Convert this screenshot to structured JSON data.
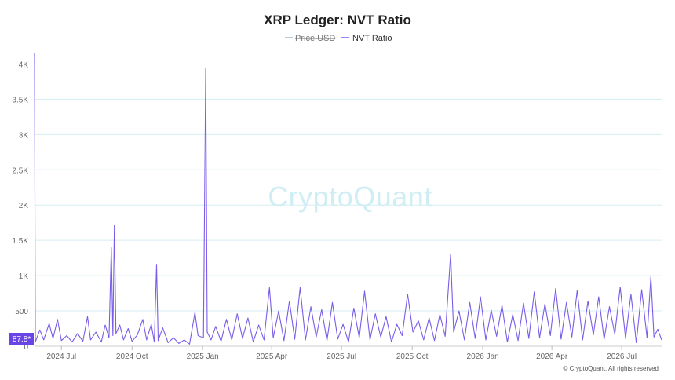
{
  "chart_data": {
    "type": "line",
    "title": "XRP Ledger: NVT Ratio",
    "legend": [
      {
        "name": "Price USD",
        "color": "#9ab6c9",
        "hidden": true
      },
      {
        "name": "NVT Ratio",
        "color": "#7a5ce8",
        "hidden": false
      }
    ],
    "y_ticks": [
      {
        "value": 0,
        "label": "0"
      },
      {
        "value": 500,
        "label": "500"
      },
      {
        "value": 1000,
        "label": "1K"
      },
      {
        "value": 1500,
        "label": "1.5K"
      },
      {
        "value": 2000,
        "label": "2K"
      },
      {
        "value": 2500,
        "label": "2.5K"
      },
      {
        "value": 3000,
        "label": "3K"
      },
      {
        "value": 3500,
        "label": "3.5K"
      },
      {
        "value": 4000,
        "label": "4K"
      }
    ],
    "ylim": [
      0,
      4150
    ],
    "x_ticks": [
      {
        "date": "2024-07-01",
        "label": "2024 Jul"
      },
      {
        "date": "2024-10-01",
        "label": "2024 Oct"
      },
      {
        "date": "2025-01-01",
        "label": "2025 Jan"
      },
      {
        "date": "2025-04-01",
        "label": "2025 Apr"
      },
      {
        "date": "2025-07-01",
        "label": "2025 Jul"
      },
      {
        "date": "2025-10-01",
        "label": "2025 Oct"
      },
      {
        "date": "2026-01-01",
        "label": "2026 Jan"
      },
      {
        "date": "2026-04-01",
        "label": "2026 Apr"
      },
      {
        "date": "2026-07-01",
        "label": "2026 Jul"
      }
    ],
    "xlim": [
      "2024-05-27",
      "2026-08-22"
    ],
    "grid": true,
    "legend_position": "top-center",
    "series": [
      {
        "name": "NVT Ratio",
        "color": "#7a5ce8",
        "points": [
          [
            "2024-05-27",
            4150
          ],
          [
            "2024-05-28",
            60
          ],
          [
            "2024-06-03",
            230
          ],
          [
            "2024-06-08",
            90
          ],
          [
            "2024-06-15",
            320
          ],
          [
            "2024-06-20",
            110
          ],
          [
            "2024-06-26",
            380
          ],
          [
            "2024-07-01",
            80
          ],
          [
            "2024-07-08",
            150
          ],
          [
            "2024-07-15",
            60
          ],
          [
            "2024-07-22",
            180
          ],
          [
            "2024-07-29",
            70
          ],
          [
            "2024-08-04",
            420
          ],
          [
            "2024-08-08",
            90
          ],
          [
            "2024-08-15",
            200
          ],
          [
            "2024-08-22",
            60
          ],
          [
            "2024-08-27",
            300
          ],
          [
            "2024-09-01",
            120
          ],
          [
            "2024-09-04",
            1400
          ],
          [
            "2024-09-06",
            150
          ],
          [
            "2024-09-08",
            1720
          ],
          [
            "2024-09-10",
            180
          ],
          [
            "2024-09-15",
            300
          ],
          [
            "2024-09-20",
            90
          ],
          [
            "2024-09-26",
            250
          ],
          [
            "2024-10-01",
            70
          ],
          [
            "2024-10-08",
            160
          ],
          [
            "2024-10-15",
            380
          ],
          [
            "2024-10-20",
            90
          ],
          [
            "2024-10-26",
            310
          ],
          [
            "2024-10-30",
            60
          ],
          [
            "2024-11-02",
            1160
          ],
          [
            "2024-11-04",
            80
          ],
          [
            "2024-11-10",
            260
          ],
          [
            "2024-11-17",
            50
          ],
          [
            "2024-11-24",
            120
          ],
          [
            "2024-12-01",
            40
          ],
          [
            "2024-12-08",
            90
          ],
          [
            "2024-12-15",
            30
          ],
          [
            "2024-12-22",
            480
          ],
          [
            "2024-12-26",
            150
          ],
          [
            "2025-01-02",
            120
          ],
          [
            "2025-01-05",
            3940
          ],
          [
            "2025-01-07",
            200
          ],
          [
            "2025-01-12",
            90
          ],
          [
            "2025-01-18",
            280
          ],
          [
            "2025-01-25",
            70
          ],
          [
            "2025-02-01",
            380
          ],
          [
            "2025-02-08",
            90
          ],
          [
            "2025-02-15",
            460
          ],
          [
            "2025-02-22",
            110
          ],
          [
            "2025-03-01",
            400
          ],
          [
            "2025-03-08",
            60
          ],
          [
            "2025-03-15",
            300
          ],
          [
            "2025-03-22",
            90
          ],
          [
            "2025-03-29",
            830
          ],
          [
            "2025-04-03",
            120
          ],
          [
            "2025-04-10",
            500
          ],
          [
            "2025-04-17",
            80
          ],
          [
            "2025-04-24",
            640
          ],
          [
            "2025-05-01",
            100
          ],
          [
            "2025-05-08",
            830
          ],
          [
            "2025-05-15",
            90
          ],
          [
            "2025-05-22",
            560
          ],
          [
            "2025-05-29",
            130
          ],
          [
            "2025-06-05",
            520
          ],
          [
            "2025-06-12",
            80
          ],
          [
            "2025-06-19",
            620
          ],
          [
            "2025-06-26",
            100
          ],
          [
            "2025-07-03",
            310
          ],
          [
            "2025-07-10",
            60
          ],
          [
            "2025-07-17",
            540
          ],
          [
            "2025-07-24",
            120
          ],
          [
            "2025-07-31",
            780
          ],
          [
            "2025-08-07",
            90
          ],
          [
            "2025-08-14",
            460
          ],
          [
            "2025-08-21",
            130
          ],
          [
            "2025-08-28",
            420
          ],
          [
            "2025-09-04",
            60
          ],
          [
            "2025-09-11",
            310
          ],
          [
            "2025-09-18",
            150
          ],
          [
            "2025-09-25",
            740
          ],
          [
            "2025-10-02",
            200
          ],
          [
            "2025-10-09",
            360
          ],
          [
            "2025-10-16",
            90
          ],
          [
            "2025-10-23",
            400
          ],
          [
            "2025-10-30",
            80
          ],
          [
            "2025-11-06",
            450
          ],
          [
            "2025-11-13",
            140
          ],
          [
            "2025-11-20",
            1300
          ],
          [
            "2025-11-24",
            200
          ],
          [
            "2025-12-01",
            500
          ],
          [
            "2025-12-08",
            90
          ],
          [
            "2025-12-15",
            620
          ],
          [
            "2025-12-22",
            110
          ],
          [
            "2025-12-29",
            700
          ],
          [
            "2026-01-05",
            90
          ],
          [
            "2026-01-12",
            510
          ],
          [
            "2026-01-19",
            140
          ],
          [
            "2026-01-26",
            580
          ],
          [
            "2026-02-02",
            60
          ],
          [
            "2026-02-09",
            450
          ],
          [
            "2026-02-16",
            80
          ],
          [
            "2026-02-23",
            610
          ],
          [
            "2026-03-02",
            110
          ],
          [
            "2026-03-09",
            770
          ],
          [
            "2026-03-16",
            120
          ],
          [
            "2026-03-23",
            600
          ],
          [
            "2026-03-30",
            150
          ],
          [
            "2026-04-06",
            820
          ],
          [
            "2026-04-13",
            100
          ],
          [
            "2026-04-20",
            620
          ],
          [
            "2026-04-27",
            130
          ],
          [
            "2026-05-04",
            790
          ],
          [
            "2026-05-11",
            90
          ],
          [
            "2026-05-18",
            640
          ],
          [
            "2026-05-25",
            160
          ],
          [
            "2026-06-01",
            700
          ],
          [
            "2026-06-08",
            100
          ],
          [
            "2026-06-15",
            560
          ],
          [
            "2026-06-22",
            170
          ],
          [
            "2026-06-29",
            840
          ],
          [
            "2026-07-06",
            110
          ],
          [
            "2026-07-13",
            740
          ],
          [
            "2026-07-20",
            50
          ],
          [
            "2026-07-27",
            800
          ],
          [
            "2026-08-03",
            120
          ],
          [
            "2026-08-08",
            990
          ],
          [
            "2026-08-12",
            130
          ],
          [
            "2026-08-17",
            240
          ],
          [
            "2026-08-22",
            88
          ]
        ]
      }
    ],
    "last_value_label": "87.8*",
    "watermark": "CryptoQuant",
    "credit": "© CryptoQuant. All rights reserved"
  }
}
